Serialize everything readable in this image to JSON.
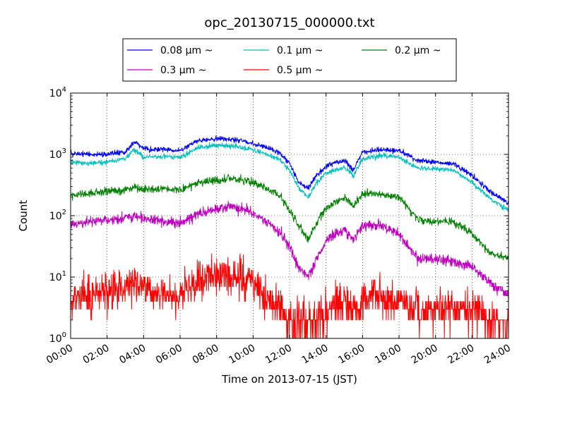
{
  "chart_data": {
    "type": "line",
    "title": "opc_20130715_000000.txt",
    "xlabel": "Time on 2013-07-15 (JST)",
    "ylabel": "Count",
    "xlim": [
      "00:00",
      "24:00"
    ],
    "ylim": [
      1,
      10000
    ],
    "yscale": "log",
    "grid": true,
    "legend_position": "above-plot",
    "x_ticks": [
      "00:00",
      "02:00",
      "04:00",
      "06:00",
      "08:00",
      "10:00",
      "12:00",
      "14:00",
      "16:00",
      "18:00",
      "20:00",
      "22:00",
      "24:00"
    ],
    "y_ticks": [
      {
        "value": 1,
        "base": "10",
        "exp": "0"
      },
      {
        "value": 10,
        "base": "10",
        "exp": "1"
      },
      {
        "value": 100,
        "base": "10",
        "exp": "2"
      },
      {
        "value": 1000,
        "base": "10",
        "exp": "3"
      },
      {
        "value": 10000,
        "base": "10",
        "exp": "4"
      }
    ],
    "x": [
      "00:00",
      "01:00",
      "02:00",
      "03:00",
      "03:30",
      "04:00",
      "05:00",
      "06:00",
      "07:00",
      "08:00",
      "09:00",
      "10:00",
      "11:00",
      "11:30",
      "12:00",
      "12:30",
      "13:00",
      "13:30",
      "14:00",
      "15:00",
      "15:30",
      "16:00",
      "17:00",
      "18:00",
      "19:00",
      "20:00",
      "21:00",
      "22:00",
      "23:00",
      "24:00"
    ],
    "series": [
      {
        "name": "0.08 μm ~",
        "color": "#0000ff",
        "noise": 0.03,
        "values": [
          1050,
          1000,
          1000,
          1100,
          1600,
          1250,
          1200,
          1150,
          1700,
          1800,
          1750,
          1500,
          1200,
          1050,
          700,
          350,
          280,
          450,
          650,
          800,
          550,
          1100,
          1200,
          1150,
          800,
          750,
          700,
          450,
          250,
          160
        ]
      },
      {
        "name": "0.1 μm ~",
        "color": "#00bfbf",
        "noise": 0.03,
        "values": [
          750,
          720,
          740,
          850,
          1200,
          900,
          920,
          900,
          1300,
          1400,
          1350,
          1200,
          950,
          820,
          550,
          280,
          200,
          350,
          500,
          620,
          450,
          850,
          950,
          900,
          600,
          580,
          550,
          350,
          190,
          120
        ]
      },
      {
        "name": "0.2 μm ~",
        "color": "#008000",
        "noise": 0.045,
        "values": [
          210,
          230,
          250,
          260,
          300,
          260,
          280,
          260,
          350,
          380,
          400,
          350,
          260,
          210,
          120,
          70,
          40,
          80,
          130,
          200,
          140,
          230,
          230,
          200,
          90,
          80,
          80,
          50,
          25,
          20
        ]
      },
      {
        "name": "0.3 μm ~",
        "color": "#bf00bf",
        "noise": 0.06,
        "values": [
          70,
          80,
          85,
          90,
          100,
          90,
          80,
          75,
          110,
          130,
          140,
          110,
          70,
          55,
          30,
          15,
          10,
          20,
          40,
          60,
          40,
          70,
          70,
          50,
          20,
          20,
          18,
          15,
          8,
          5
        ]
      },
      {
        "name": "0.5 μm ~",
        "color": "#ff0000",
        "noise": 0.22,
        "values": [
          5,
          5,
          6,
          6,
          8,
          6,
          5,
          5,
          9,
          12,
          11,
          8,
          4,
          3,
          2,
          2,
          2,
          2,
          3,
          4,
          3,
          5,
          5,
          4,
          3,
          3,
          3,
          3,
          2,
          2
        ]
      }
    ]
  }
}
